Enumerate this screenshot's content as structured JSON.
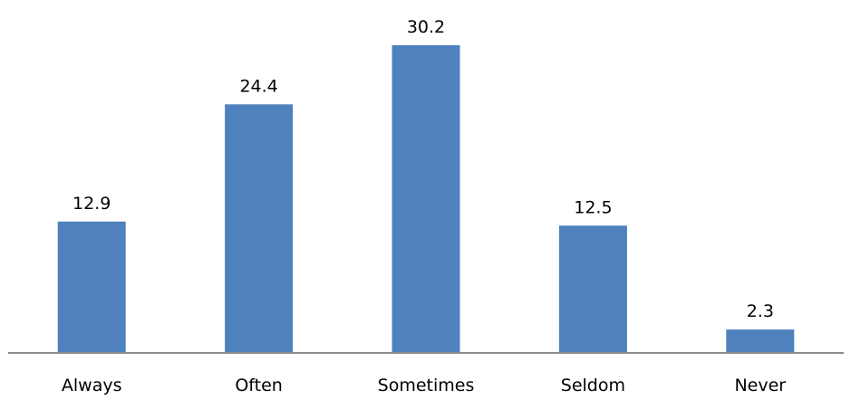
{
  "colors": {
    "bar": "#4f81bd",
    "axis": "#8c8c8c",
    "text": "#000000",
    "background": "#ffffff"
  },
  "chart_data": {
    "type": "bar",
    "title": "",
    "xlabel": "",
    "ylabel": "",
    "categories": [
      "Always",
      "Often",
      "Sometimes",
      "Seldom",
      "Never"
    ],
    "values": [
      12.9,
      24.4,
      30.2,
      12.5,
      2.3
    ],
    "data_labels": [
      "12.9",
      "24.4",
      "30.2",
      "12.5",
      "2.3"
    ],
    "ylim": [
      0,
      30.2
    ],
    "grid": false,
    "legend": "none"
  }
}
